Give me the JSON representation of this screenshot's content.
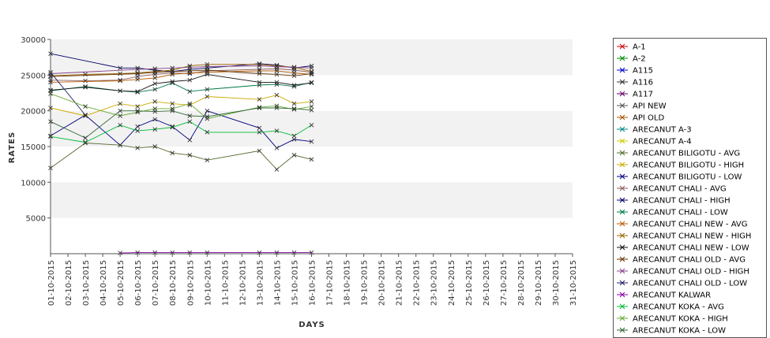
{
  "chart_data": {
    "type": "line",
    "xlabel": "DAYS",
    "ylabel": "RATES",
    "ylim": [
      0,
      30000
    ],
    "yticks": [
      5000,
      10000,
      15000,
      20000,
      25000,
      30000
    ],
    "grid": "alternating horizontal bands",
    "legend_position": "right",
    "categories": [
      "01-10-2015",
      "02-10-2015",
      "03-10-2015",
      "04-10-2015",
      "05-10-2015",
      "06-10-2015",
      "07-10-2015",
      "08-10-2015",
      "09-10-2015",
      "10-10-2015",
      "11-10-2015",
      "12-10-2015",
      "13-10-2015",
      "14-10-2015",
      "15-10-2015",
      "16-10-2015",
      "17-10-2015",
      "18-10-2015",
      "19-10-2015",
      "20-10-2015",
      "21-10-2015",
      "22-10-2015",
      "23-10-2015",
      "24-10-2015",
      "25-10-2015",
      "26-10-2015",
      "27-10-2015",
      "28-10-2015",
      "29-10-2015",
      "30-10-2015",
      "31-10-2015"
    ],
    "series": [
      {
        "name": "A-1",
        "color": "#cc0000",
        "values": [
          null,
          null,
          null,
          null,
          null,
          null,
          null,
          null,
          null,
          null,
          null,
          null,
          null,
          null,
          null,
          null,
          null,
          null,
          null,
          null,
          null,
          null,
          null,
          null,
          null,
          null,
          null,
          null,
          null,
          null,
          null
        ]
      },
      {
        "name": "A-2",
        "color": "#008800",
        "values": [
          null,
          null,
          null,
          null,
          null,
          null,
          null,
          null,
          null,
          null,
          null,
          null,
          null,
          null,
          null,
          null,
          null,
          null,
          null,
          null,
          null,
          null,
          null,
          null,
          null,
          null,
          null,
          null,
          null,
          null,
          null
        ]
      },
      {
        "name": "A115",
        "color": "#0000cc",
        "values": [
          null,
          null,
          null,
          null,
          null,
          null,
          null,
          null,
          null,
          null,
          null,
          null,
          null,
          null,
          null,
          null,
          null,
          null,
          null,
          null,
          null,
          null,
          null,
          null,
          null,
          null,
          null,
          null,
          null,
          null,
          null
        ]
      },
      {
        "name": "A116",
        "color": "#333333",
        "values": [
          null,
          null,
          null,
          null,
          null,
          null,
          null,
          null,
          null,
          null,
          null,
          null,
          null,
          null,
          null,
          null,
          null,
          null,
          null,
          null,
          null,
          null,
          null,
          null,
          null,
          null,
          null,
          null,
          null,
          null,
          null
        ]
      },
      {
        "name": "A117",
        "color": "#660066",
        "values": [
          null,
          null,
          null,
          null,
          null,
          null,
          null,
          null,
          null,
          null,
          null,
          null,
          null,
          null,
          null,
          null,
          null,
          null,
          null,
          null,
          null,
          null,
          null,
          null,
          null,
          null,
          null,
          null,
          null,
          null,
          null
        ]
      },
      {
        "name": "API NEW",
        "color": "#555555",
        "values": [
          null,
          null,
          null,
          null,
          null,
          null,
          null,
          null,
          null,
          null,
          null,
          null,
          null,
          null,
          null,
          null,
          null,
          null,
          null,
          null,
          null,
          null,
          null,
          null,
          null,
          null,
          null,
          null,
          null,
          null,
          null
        ]
      },
      {
        "name": "API OLD",
        "color": "#aa5500",
        "values": [
          null,
          null,
          null,
          null,
          null,
          null,
          null,
          null,
          null,
          null,
          null,
          null,
          null,
          null,
          null,
          null,
          null,
          null,
          null,
          null,
          null,
          null,
          null,
          null,
          null,
          null,
          null,
          null,
          null,
          null,
          null
        ]
      },
      {
        "name": "ARECANUT A-3",
        "color": "#008888",
        "values": [
          null,
          null,
          null,
          null,
          null,
          null,
          null,
          null,
          null,
          null,
          null,
          null,
          null,
          null,
          null,
          null,
          null,
          null,
          null,
          null,
          null,
          null,
          null,
          null,
          null,
          null,
          null,
          null,
          null,
          null,
          null
        ]
      },
      {
        "name": "ARECANUT A-4",
        "color": "#cccc00",
        "values": [
          null,
          null,
          null,
          null,
          null,
          null,
          null,
          null,
          null,
          null,
          null,
          null,
          null,
          null,
          null,
          null,
          null,
          null,
          null,
          null,
          null,
          null,
          null,
          null,
          null,
          null,
          null,
          null,
          null,
          null,
          null
        ]
      },
      {
        "name": "ARECANUT BILIGOTU - AVG",
        "color": "#556b2f",
        "values": [
          12000,
          null,
          15500,
          null,
          15200,
          14800,
          15000,
          14100,
          13800,
          13100,
          null,
          null,
          14400,
          11800,
          13800,
          13200,
          null,
          null,
          null,
          null,
          null,
          null,
          null,
          null,
          null,
          null,
          null,
          null,
          null,
          null,
          null
        ]
      },
      {
        "name": "ARECANUT BILIGOTU - HIGH",
        "color": "#ccaa00",
        "values": [
          20400,
          null,
          19300,
          null,
          21000,
          20600,
          21300,
          21000,
          20800,
          22000,
          null,
          null,
          21600,
          22200,
          21000,
          21300,
          null,
          null,
          null,
          null,
          null,
          null,
          null,
          null,
          null,
          null,
          null,
          null,
          null,
          null,
          null
        ]
      },
      {
        "name": "ARECANUT BILIGOTU - LOW",
        "color": "#000080",
        "values": [
          16500,
          null,
          19400,
          null,
          15200,
          17800,
          18800,
          17800,
          15900,
          20000,
          null,
          null,
          17600,
          14800,
          16000,
          15700,
          null,
          null,
          null,
          null,
          null,
          null,
          null,
          null,
          null,
          null,
          null,
          null,
          null,
          null,
          null
        ]
      },
      {
        "name": "ARECANUT CHALI - AVG",
        "color": "#8b5a5a",
        "values": [
          24300,
          null,
          24200,
          null,
          24300,
          24800,
          25100,
          25300,
          25200,
          25600,
          null,
          null,
          25800,
          25900,
          25700,
          25400,
          null,
          null,
          null,
          null,
          null,
          null,
          null,
          null,
          null,
          null,
          null,
          null,
          null,
          null,
          null
        ]
      },
      {
        "name": "ARECANUT CHALI - HIGH",
        "color": "#000066",
        "values": [
          28000,
          null,
          null,
          null,
          26000,
          26000,
          25700,
          25500,
          25800,
          26000,
          null,
          null,
          26600,
          26400,
          26000,
          26300,
          null,
          null,
          null,
          null,
          null,
          null,
          null,
          null,
          null,
          null,
          null,
          null,
          null,
          null,
          null
        ]
      },
      {
        "name": "ARECANUT CHALI - LOW",
        "color": "#007744",
        "values": [
          22800,
          null,
          23400,
          null,
          22800,
          22600,
          23000,
          23900,
          22700,
          23000,
          null,
          null,
          23600,
          23700,
          23400,
          24000,
          null,
          null,
          null,
          null,
          null,
          null,
          null,
          null,
          null,
          null,
          null,
          null,
          null,
          null,
          null
        ]
      },
      {
        "name": "ARECANUT CHALI NEW - AVG",
        "color": "#b85c00",
        "values": [
          24000,
          null,
          null,
          null,
          24200,
          24400,
          24600,
          25100,
          25300,
          25400,
          null,
          null,
          25600,
          25600,
          25300,
          25100,
          null,
          null,
          null,
          null,
          null,
          null,
          null,
          null,
          null,
          null,
          null,
          null,
          null,
          null,
          null
        ]
      },
      {
        "name": "ARECANUT CHALI NEW - HIGH",
        "color": "#996600",
        "values": [
          24900,
          null,
          25100,
          null,
          25200,
          25300,
          25500,
          25700,
          26300,
          26500,
          null,
          null,
          26500,
          26300,
          26100,
          25500,
          null,
          null,
          null,
          null,
          null,
          null,
          null,
          null,
          null,
          null,
          null,
          null,
          null,
          null,
          null
        ]
      },
      {
        "name": "ARECANUT CHALI NEW - LOW",
        "color": "#111111",
        "values": [
          22900,
          null,
          23300,
          null,
          22800,
          22700,
          23800,
          24100,
          24300,
          25100,
          null,
          null,
          24000,
          24000,
          23600,
          23900,
          null,
          null,
          null,
          null,
          null,
          null,
          null,
          null,
          null,
          null,
          null,
          null,
          null,
          null,
          null
        ]
      },
      {
        "name": "ARECANUT CHALI OLD - AVG",
        "color": "#663300",
        "values": [
          24800,
          null,
          null,
          null,
          null,
          25200,
          25400,
          25500,
          25600,
          25700,
          null,
          null,
          25200,
          25100,
          24900,
          25200,
          null,
          null,
          null,
          null,
          null,
          null,
          null,
          null,
          null,
          null,
          null,
          null,
          null,
          null,
          null
        ]
      },
      {
        "name": "ARECANUT CHALI OLD - HIGH",
        "color": "#884488",
        "values": [
          25200,
          null,
          null,
          null,
          null,
          25800,
          25900,
          26000,
          26100,
          26200,
          null,
          null,
          26300,
          26200,
          26100,
          26000,
          null,
          null,
          null,
          null,
          null,
          null,
          null,
          null,
          null,
          null,
          null,
          null,
          null,
          null,
          null
        ]
      },
      {
        "name": "ARECANUT CHALI OLD - LOW",
        "color": "#222266",
        "values": [
          25400,
          null,
          19400,
          null,
          null,
          null,
          null,
          null,
          null,
          null,
          null,
          null,
          null,
          null,
          null,
          null,
          null,
          null,
          null,
          null,
          null,
          null,
          null,
          null,
          null,
          null,
          null,
          null,
          null,
          null,
          null
        ]
      },
      {
        "name": "ARECANUT KALWAR",
        "color": "#8800aa",
        "values": [
          null,
          null,
          null,
          null,
          100,
          150,
          150,
          150,
          150,
          150,
          null,
          null,
          150,
          150,
          150,
          150,
          null,
          null,
          null,
          null,
          null,
          null,
          null,
          null,
          null,
          null,
          null,
          null,
          null,
          null,
          null
        ]
      },
      {
        "name": "ARECANUT KOKA - AVG",
        "color": "#00bb33",
        "values": [
          16400,
          null,
          15600,
          null,
          18000,
          17200,
          17400,
          17700,
          18500,
          17000,
          null,
          null,
          17000,
          17200,
          16500,
          18000,
          null,
          null,
          null,
          null,
          null,
          null,
          null,
          null,
          null,
          null,
          null,
          null,
          null,
          null,
          null
        ]
      },
      {
        "name": "ARECANUT KOKA - HIGH",
        "color": "#66aa33",
        "values": [
          22400,
          null,
          20600,
          null,
          19300,
          19800,
          20300,
          20300,
          21000,
          18900,
          null,
          null,
          20500,
          20700,
          20200,
          20600,
          null,
          null,
          null,
          null,
          null,
          null,
          null,
          null,
          null,
          null,
          null,
          null,
          null,
          null,
          null
        ]
      },
      {
        "name": "ARECANUT KOKA - LOW",
        "color": "#336633",
        "values": [
          18500,
          null,
          16200,
          null,
          20000,
          20000,
          19900,
          20000,
          19300,
          19200,
          null,
          null,
          20400,
          20400,
          20300,
          20100,
          null,
          null,
          null,
          null,
          null,
          null,
          null,
          null,
          null,
          null,
          null,
          null,
          null,
          null,
          null
        ]
      }
    ]
  }
}
